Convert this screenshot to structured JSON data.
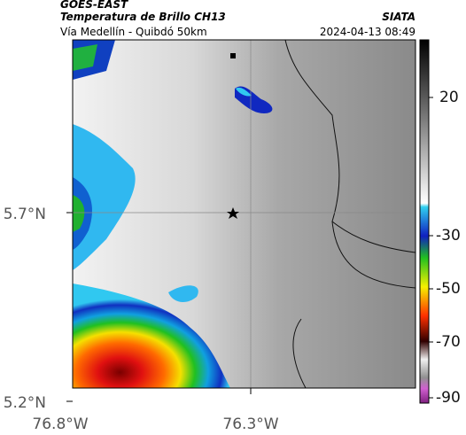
{
  "header": {
    "satellite": "GOES-EAST",
    "product": "Temperatura de Brillo CH13",
    "route": "Vía Medellín - Quibdó 50km",
    "org": "SIATA",
    "datetime": "2024-04-13 08:49"
  },
  "axes": {
    "lat_labels": [
      "5.7°N",
      "5.2°N"
    ],
    "lon_labels": [
      "76.8°W",
      "76.3°W"
    ]
  },
  "colorbar": {
    "tick_labels": [
      "20",
      "-30",
      "-50",
      "-70",
      "-90"
    ]
  }
}
